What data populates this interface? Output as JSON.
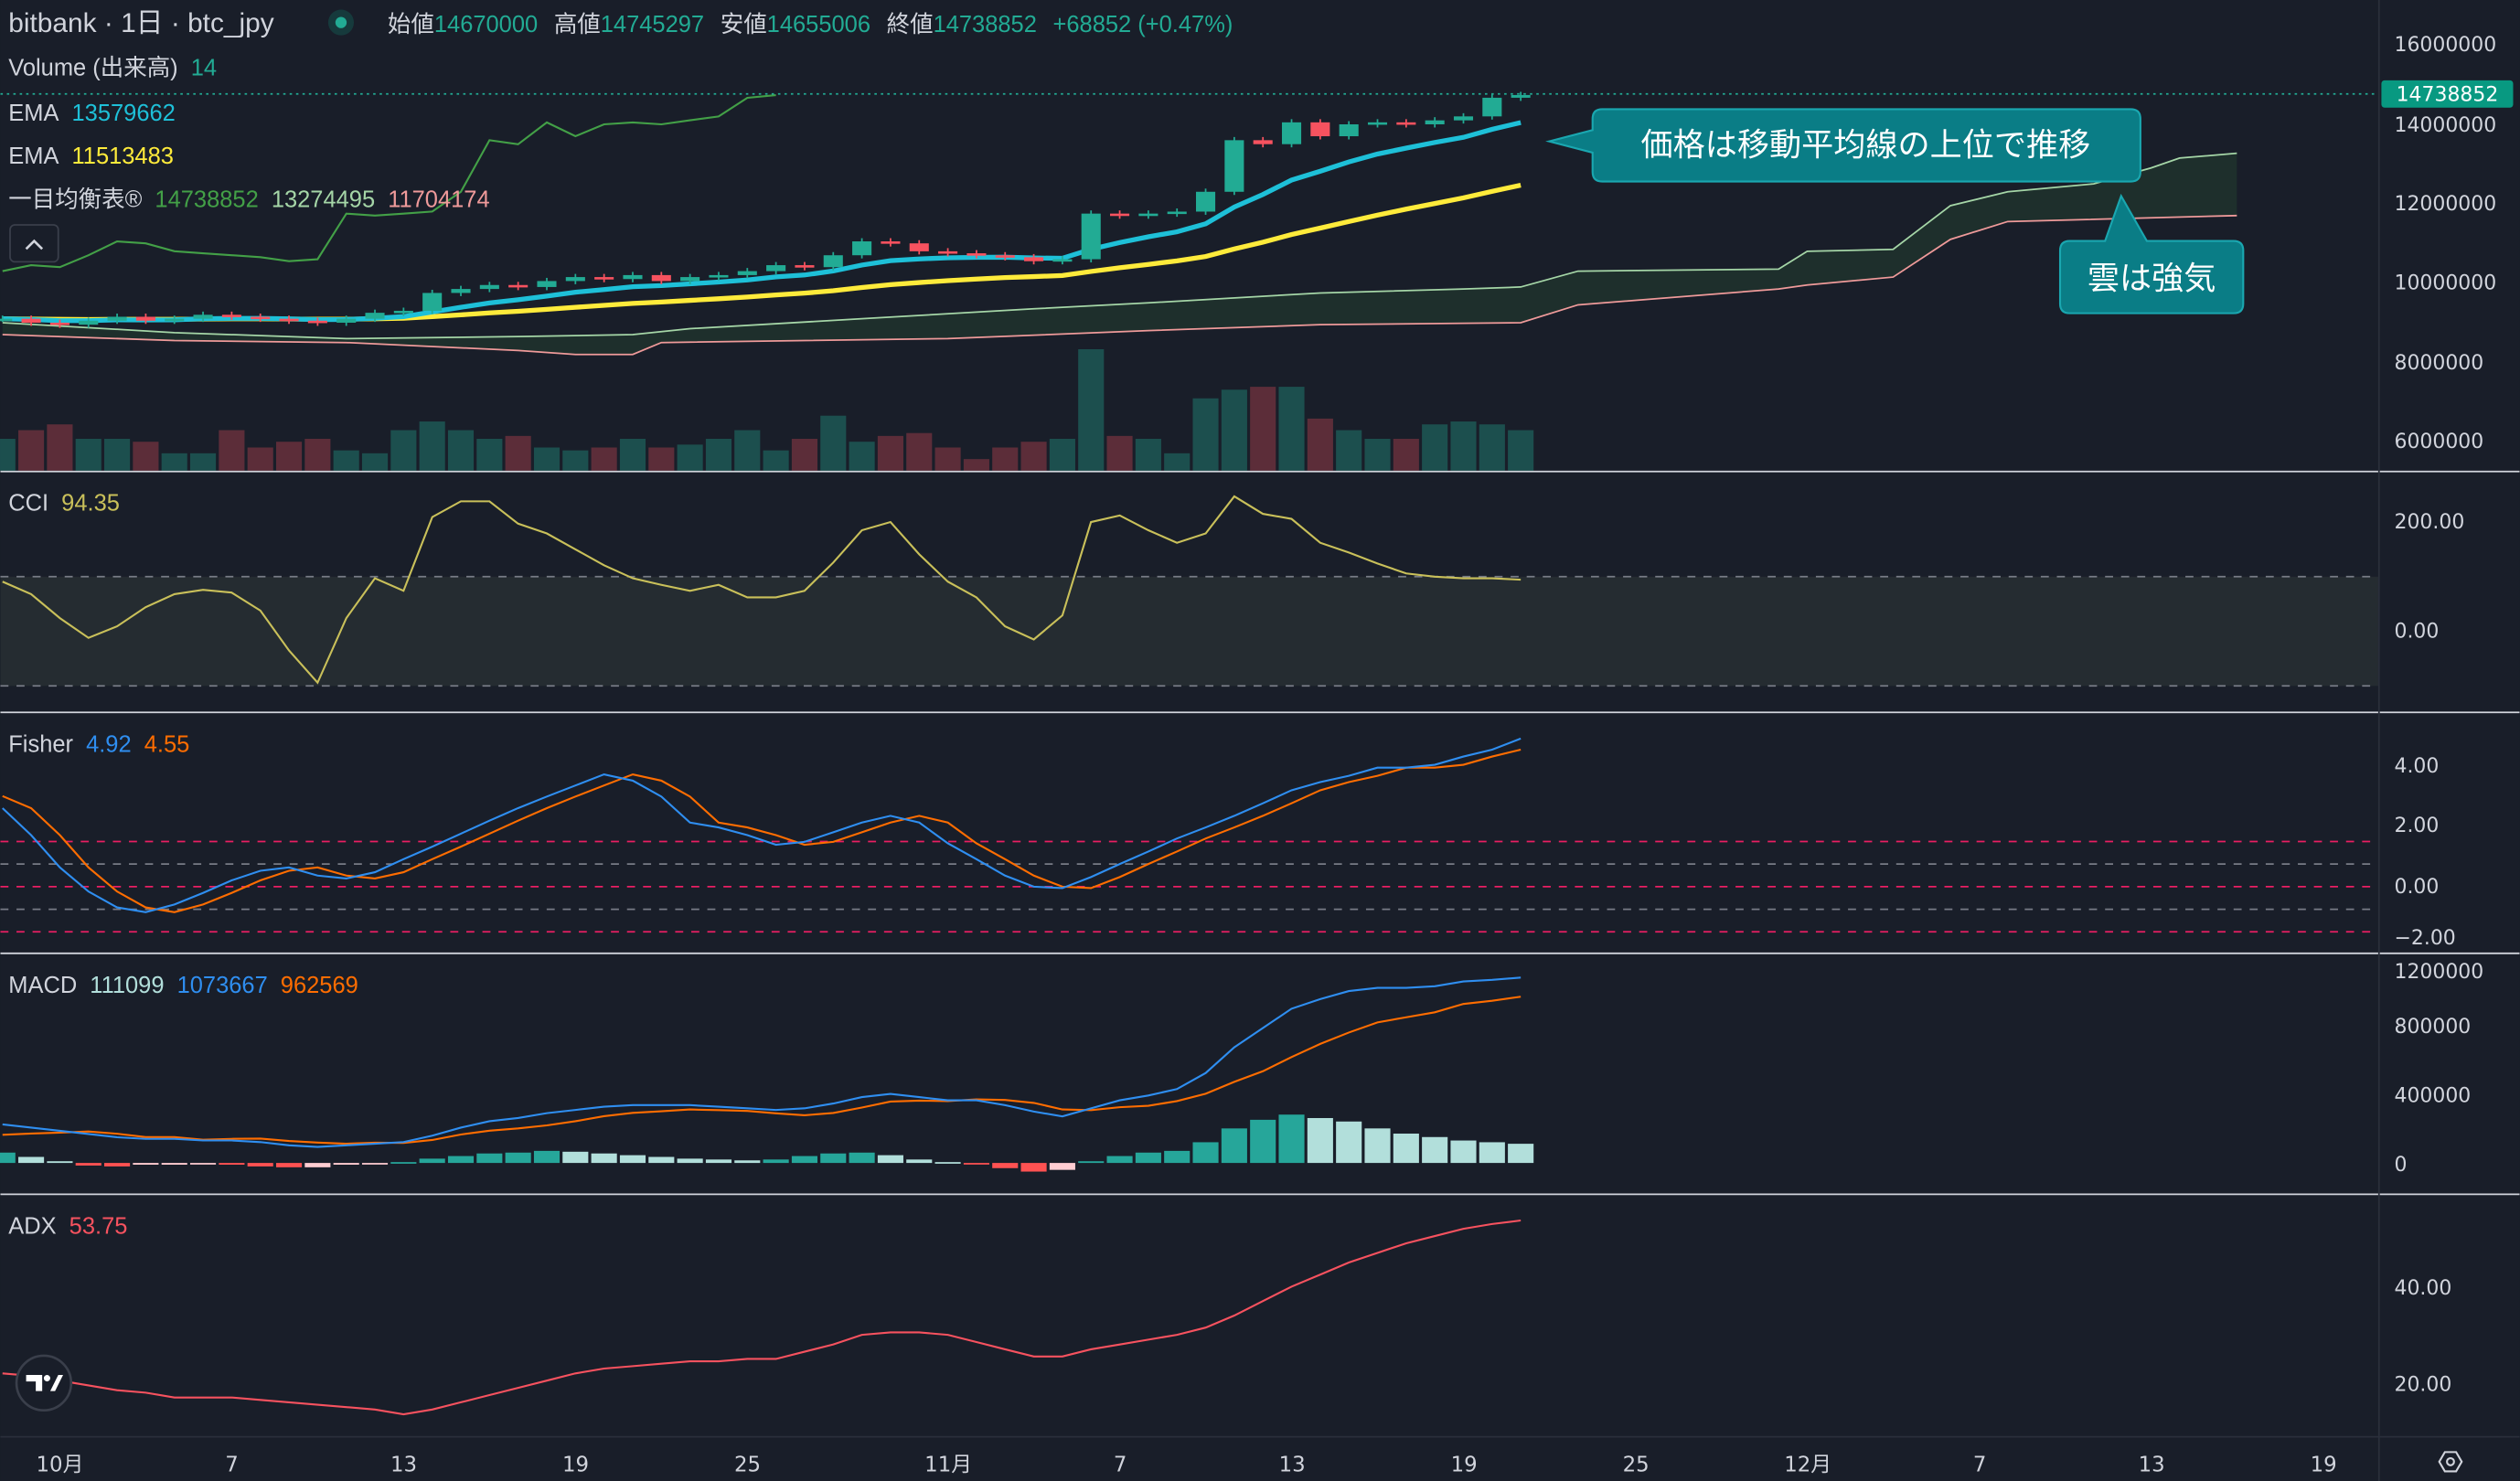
{
  "header": {
    "title": "bitbank · 1日 · btc_jpy",
    "open_label": "始値",
    "open": "14670000",
    "high_label": "高値",
    "high": "14745297",
    "low_label": "安値",
    "low": "14655006",
    "close_label": "終値",
    "close": "14738852",
    "change": "+68852 (+0.47%)"
  },
  "legends": {
    "volume": {
      "label": "Volume (出来高)",
      "value": "14"
    },
    "ema1": {
      "label": "EMA",
      "value": "13579662"
    },
    "ema2": {
      "label": "EMA",
      "value": "11513483"
    },
    "ichimoku": {
      "label": "一目均衡表®",
      "v1": "14738852",
      "v2": "13274495",
      "v3": "11704174"
    },
    "cci": {
      "label": "CCI",
      "value": "94.35"
    },
    "fisher": {
      "label": "Fisher",
      "v1": "4.92",
      "v2": "4.55"
    },
    "macd": {
      "label": "MACD",
      "v1": "111099",
      "v2": "1073667",
      "v3": "962569"
    },
    "adx": {
      "label": "ADX",
      "value": "53.75"
    }
  },
  "annotations": {
    "callout1": "価格は移動平均線の上位で推移",
    "callout2": "雲は強気"
  },
  "axes": {
    "price_ticks": [
      "16000000",
      "14000000",
      "12000000",
      "10000000",
      "8000000",
      "6000000"
    ],
    "last_price": "14738852",
    "cci_ticks": [
      "200.00",
      "0.00"
    ],
    "fisher_ticks": [
      "4.00",
      "2.00",
      "0.00",
      "−2.00"
    ],
    "macd_ticks": [
      "1200000",
      "800000",
      "400000",
      "0"
    ],
    "adx_ticks": [
      "40.00",
      "20.00"
    ],
    "time_ticks": [
      "10月",
      "7",
      "13",
      "19",
      "25",
      "11月",
      "7",
      "13",
      "19",
      "25",
      "12月",
      "7",
      "13",
      "19"
    ]
  },
  "colors": {
    "up": "#22ab94",
    "down": "#f7525f",
    "ema1": "#1ec0d8",
    "ema2": "#ffeb3b",
    "span_a": "#a5d6a7",
    "span_b": "#ef9a9a",
    "lagging": "#43a047",
    "cci": "#c9c05a",
    "fisher": "#2f8ef0",
    "trigger": "#ff6d00",
    "macd": "#2f8ef0",
    "signal": "#ff6d00",
    "adx": "#f7525f",
    "callout": "#0a7d86",
    "last_price_badge": "#089981"
  },
  "chart_data": {
    "type": "candlestick",
    "start_date": "9/29",
    "close": [
      9.1,
      9.0,
      8.95,
      9.05,
      9.15,
      9.05,
      9.1,
      9.2,
      9.15,
      9.1,
      9.05,
      9.0,
      9.1,
      9.25,
      9.3,
      9.75,
      9.85,
      9.95,
      9.9,
      10.05,
      10.15,
      10.1,
      10.2,
      10.05,
      10.15,
      10.2,
      10.3,
      10.45,
      10.4,
      10.7,
      11.05,
      11.0,
      10.8,
      10.75,
      10.7,
      10.65,
      10.55,
      10.6,
      11.75,
      11.7,
      11.75,
      11.8,
      12.3,
      13.6,
      13.5,
      14.05,
      13.7,
      14.0,
      14.05,
      14.0,
      14.1,
      14.2,
      14.67,
      14.738852
    ],
    "price_unit": "M JPY",
    "price_range": [
      5.5,
      16.3
    ],
    "volume": [
      11,
      14,
      16,
      11,
      11,
      10,
      6,
      6,
      14,
      8,
      10,
      11,
      7,
      6,
      14,
      17,
      14,
      11,
      12,
      8,
      7,
      8,
      11,
      8,
      9,
      11,
      14,
      7,
      11,
      19,
      10,
      12,
      13,
      8,
      4,
      8,
      10,
      11,
      42,
      12,
      11,
      6,
      25,
      28,
      29,
      29,
      18,
      14,
      11,
      11,
      16,
      17,
      16,
      14
    ],
    "span_a": [
      [
        "9/29",
        9.0
      ],
      [
        "10/5",
        8.75
      ],
      [
        "10/11",
        8.6
      ],
      [
        "10/17",
        8.65
      ],
      [
        "10/21",
        8.7
      ],
      [
        "10/23",
        8.85
      ],
      [
        "10/29",
        9.1
      ],
      [
        "11/4",
        9.35
      ],
      [
        "11/8",
        9.5
      ],
      [
        "11/14",
        9.75
      ],
      [
        "11/19",
        9.85
      ],
      [
        "11/21",
        9.9
      ],
      [
        "11/23",
        10.3
      ],
      [
        "11/30",
        10.35
      ],
      [
        "12/1",
        10.8
      ],
      [
        "12/4",
        10.85
      ],
      [
        "12/6",
        11.95
      ],
      [
        "12/8",
        12.3
      ],
      [
        "12/11",
        12.5
      ],
      [
        "12/13",
        12.9
      ],
      [
        "12/14",
        13.15
      ],
      [
        "12/16",
        13.27
      ]
    ],
    "span_b": [
      [
        "9/29",
        8.7
      ],
      [
        "10/5",
        8.55
      ],
      [
        "10/11",
        8.5
      ],
      [
        "10/17",
        8.3
      ],
      [
        "10/19",
        8.2
      ],
      [
        "10/21",
        8.2
      ],
      [
        "10/22",
        8.5
      ],
      [
        "11/1",
        8.6
      ],
      [
        "11/8",
        8.8
      ],
      [
        "11/14",
        8.95
      ],
      [
        "11/21",
        9.0
      ],
      [
        "11/23",
        9.45
      ],
      [
        "11/30",
        9.85
      ],
      [
        "12/1",
        9.95
      ],
      [
        "12/4",
        10.15
      ],
      [
        "12/6",
        11.1
      ],
      [
        "12/8",
        11.55
      ],
      [
        "12/16",
        11.7
      ]
    ],
    "cci": [
      91,
      68,
      24,
      -12,
      9,
      44,
      68,
      76,
      71,
      38,
      -35,
      -94,
      24,
      97,
      74,
      209,
      238,
      238,
      197,
      179,
      150,
      121,
      97,
      85,
      74,
      85,
      62,
      62,
      74,
      126,
      185,
      200,
      141,
      91,
      62,
      9,
      -15,
      29,
      200,
      212,
      185,
      162,
      179,
      247,
      215,
      206,
      162,
      144,
      124,
      106,
      100,
      97,
      97,
      94.35
    ],
    "cci_bands": [
      -100,
      100
    ],
    "fisher": [
      2.61,
      1.71,
      0.64,
      -0.16,
      -0.69,
      -0.85,
      -0.59,
      -0.21,
      0.21,
      0.53,
      0.64,
      0.37,
      0.27,
      0.48,
      0.91,
      1.33,
      1.76,
      2.19,
      2.61,
      2.99,
      3.36,
      3.73,
      3.52,
      2.99,
      2.13,
      1.97,
      1.71,
      1.39,
      1.49,
      1.81,
      2.13,
      2.35,
      2.13,
      1.44,
      0.91,
      0.37,
      0.0,
      -0.05,
      0.32,
      0.75,
      1.17,
      1.6,
      1.97,
      2.35,
      2.77,
      3.2,
      3.47,
      3.68,
      3.95,
      3.95,
      4.05,
      4.32,
      4.55,
      4.92
    ],
    "fisher_levels": [
      1.5,
      0.75,
      0,
      -0.75,
      -1.5
    ],
    "macd": [
      223,
      205,
      186,
      167,
      149,
      140,
      140,
      130,
      130,
      121,
      102,
      93,
      102,
      112,
      121,
      158,
      205,
      242,
      260,
      288,
      307,
      326,
      335,
      335,
      335,
      326,
      316,
      307,
      316,
      344,
      381,
      400,
      381,
      363,
      363,
      335,
      298,
      270,
      316,
      363,
      391,
      428,
      521,
      670,
      781,
      893,
      949,
      995,
      1014,
      1014,
      1023,
      1051,
      1060,
      1073.667
    ],
    "histogram": [
      60,
      35,
      10,
      -15,
      -20,
      -10,
      -10,
      -5,
      -10,
      -20,
      -25,
      -25,
      -10,
      -5,
      5,
      25,
      40,
      55,
      60,
      70,
      65,
      55,
      45,
      35,
      25,
      20,
      15,
      20,
      40,
      55,
      60,
      45,
      20,
      5,
      -5,
      -30,
      -50,
      -40,
      10,
      40,
      60,
      70,
      120,
      200,
      250,
      280,
      260,
      240,
      200,
      170,
      150,
      130,
      120,
      111.099
    ],
    "macd_unit": "thousand",
    "adx": [
      22,
      21.5,
      20.5,
      19.5,
      18.5,
      18,
      17,
      17,
      17,
      16.5,
      16,
      15.5,
      15,
      14.5,
      13.5,
      14.5,
      16,
      17.5,
      19,
      20.5,
      22,
      23,
      23.5,
      24,
      24.5,
      24.5,
      25,
      25,
      26.5,
      28,
      30,
      30.5,
      30.5,
      30,
      28.5,
      27,
      25.5,
      25.5,
      27,
      28,
      29,
      30,
      31.5,
      34,
      37,
      40,
      42.5,
      45,
      47,
      49,
      50.5,
      52,
      53,
      53.75
    ]
  }
}
